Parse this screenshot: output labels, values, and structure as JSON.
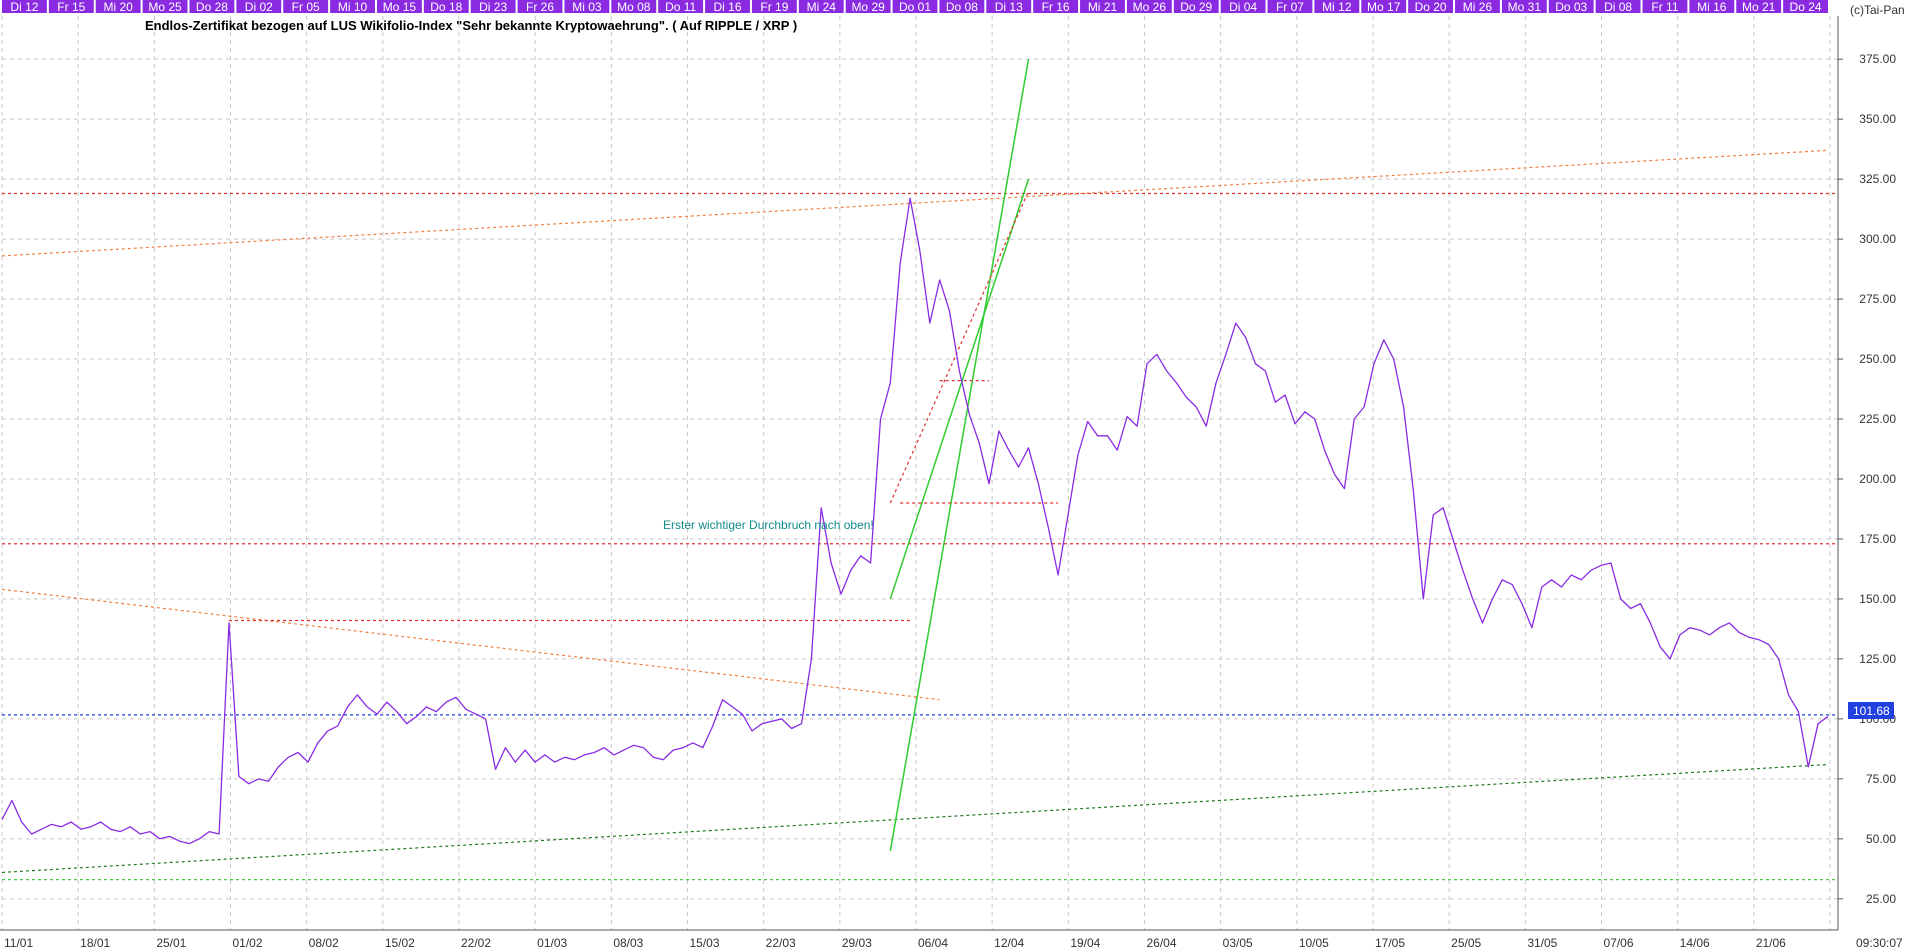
{
  "chart_data": {
    "type": "line",
    "title": "Endlos-Zertifikat bezogen auf LUS Wikifolio-Index \"Sehr bekannte Kryptowaehrung\". ( Auf RIPPLE / XRP )",
    "copyright": "(c)Tai-Pan",
    "top_day_labels": [
      "Di 12",
      "Fr 15",
      "Mi 20",
      "Mo 25",
      "Do 28",
      "Di 02",
      "Fr 05",
      "Mi 10",
      "Mo 15",
      "Do 18",
      "Di 23",
      "Fr 26",
      "Mi 03",
      "Mo 08",
      "Do 11",
      "Di 16",
      "Fr 19",
      "Mi 24",
      "Mo 29",
      "Do 01",
      "Do 08",
      "Di 13",
      "Fr 16",
      "Mi 21",
      "Mo 26",
      "Do 29",
      "Di 04",
      "Fr 07",
      "Mi 12",
      "Mo 17",
      "Do 20",
      "Mi 26",
      "Mo 31",
      "Do 03",
      "Di 08",
      "Fr 11",
      "Mi 16",
      "Mo 21",
      "Do 24"
    ],
    "bottom_date_labels": [
      "11/01",
      "18/01",
      "25/01",
      "01/02",
      "08/02",
      "15/02",
      "22/02",
      "01/03",
      "08/03",
      "15/03",
      "22/03",
      "29/03",
      "06/04",
      "12/04",
      "19/04",
      "26/04",
      "03/05",
      "10/05",
      "17/05",
      "25/05",
      "31/05",
      "07/06",
      "14/06",
      "21/06",
      "09:30:07"
    ],
    "y_ticks": [
      "25.00",
      "50.00",
      "75.00",
      "100.00",
      "125.00",
      "150.00",
      "175.00",
      "200.00",
      "225.00",
      "250.00",
      "275.00",
      "300.00",
      "325.00",
      "350.00",
      "375.00"
    ],
    "ylim": [
      12,
      393
    ],
    "last_value": "101.68",
    "annotation": "Erster wichtiger Durchbruch nach oben!",
    "colors": {
      "price": "#8a2be2",
      "horizontal_red": "#e03030",
      "horizontal_blue": "#2040e0",
      "trend_green": "#2ecc2e",
      "trend_orange": "#f08040",
      "trend_dashed_green": "#207a20",
      "label_bar": "#8a2be2"
    },
    "x_index_range": [
      0,
      166
    ],
    "series": [
      {
        "values": [
          [
            0,
            58
          ],
          [
            1,
            66
          ],
          [
            2,
            57
          ],
          [
            3,
            52
          ],
          [
            4,
            54
          ],
          [
            5,
            56
          ],
          [
            6,
            55
          ],
          [
            7,
            57
          ],
          [
            8,
            54
          ],
          [
            9,
            55
          ],
          [
            10,
            57
          ],
          [
            11,
            54
          ],
          [
            12,
            53
          ],
          [
            13,
            55
          ],
          [
            14,
            52
          ],
          [
            15,
            53
          ],
          [
            16,
            50
          ],
          [
            17,
            51
          ],
          [
            18,
            49
          ],
          [
            19,
            48
          ],
          [
            20,
            50
          ],
          [
            21,
            53
          ],
          [
            22,
            52
          ],
          [
            23,
            140
          ],
          [
            24,
            76
          ],
          [
            25,
            73
          ],
          [
            26,
            75
          ],
          [
            27,
            74
          ],
          [
            28,
            80
          ],
          [
            29,
            84
          ],
          [
            30,
            86
          ],
          [
            31,
            82
          ],
          [
            32,
            90
          ],
          [
            33,
            95
          ],
          [
            34,
            97
          ],
          [
            35,
            105
          ],
          [
            36,
            110
          ],
          [
            37,
            105
          ],
          [
            38,
            102
          ],
          [
            39,
            107
          ],
          [
            40,
            103
          ],
          [
            41,
            98
          ],
          [
            42,
            101
          ],
          [
            43,
            105
          ],
          [
            44,
            103
          ],
          [
            45,
            107
          ],
          [
            46,
            109
          ],
          [
            47,
            104
          ],
          [
            48,
            102
          ],
          [
            49,
            100
          ],
          [
            50,
            79
          ],
          [
            51,
            88
          ],
          [
            52,
            82
          ],
          [
            53,
            87
          ],
          [
            54,
            82
          ],
          [
            55,
            85
          ],
          [
            56,
            82
          ],
          [
            57,
            84
          ],
          [
            58,
            83
          ],
          [
            59,
            85
          ],
          [
            60,
            86
          ],
          [
            61,
            88
          ],
          [
            62,
            85
          ],
          [
            63,
            87
          ],
          [
            64,
            89
          ],
          [
            65,
            88
          ],
          [
            66,
            84
          ],
          [
            67,
            83
          ],
          [
            68,
            87
          ],
          [
            69,
            88
          ],
          [
            70,
            90
          ],
          [
            71,
            88
          ],
          [
            72,
            97
          ],
          [
            73,
            108
          ],
          [
            74,
            105
          ],
          [
            75,
            102
          ],
          [
            76,
            95
          ],
          [
            77,
            98
          ],
          [
            78,
            99
          ],
          [
            79,
            100
          ],
          [
            80,
            96
          ],
          [
            81,
            98
          ],
          [
            82,
            125
          ],
          [
            83,
            188
          ],
          [
            84,
            165
          ],
          [
            85,
            152
          ],
          [
            86,
            162
          ],
          [
            87,
            168
          ],
          [
            88,
            165
          ],
          [
            89,
            225
          ],
          [
            90,
            240
          ],
          [
            91,
            290
          ],
          [
            92,
            317
          ],
          [
            93,
            295
          ],
          [
            94,
            265
          ],
          [
            95,
            283
          ],
          [
            96,
            270
          ],
          [
            97,
            245
          ],
          [
            98,
            227
          ],
          [
            99,
            215
          ],
          [
            100,
            198
          ],
          [
            101,
            220
          ],
          [
            102,
            212
          ],
          [
            103,
            205
          ],
          [
            104,
            213
          ],
          [
            105,
            198
          ],
          [
            106,
            180
          ],
          [
            107,
            160
          ],
          [
            108,
            185
          ],
          [
            109,
            210
          ],
          [
            110,
            224
          ],
          [
            111,
            218
          ],
          [
            112,
            218
          ],
          [
            113,
            212
          ],
          [
            114,
            226
          ],
          [
            115,
            222
          ],
          [
            116,
            248
          ],
          [
            117,
            252
          ],
          [
            118,
            245
          ],
          [
            119,
            240
          ],
          [
            120,
            234
          ],
          [
            121,
            230
          ],
          [
            122,
            222
          ],
          [
            123,
            240
          ],
          [
            124,
            252
          ],
          [
            125,
            265
          ],
          [
            126,
            259
          ],
          [
            127,
            248
          ],
          [
            128,
            245
          ],
          [
            129,
            232
          ],
          [
            130,
            235
          ],
          [
            131,
            223
          ],
          [
            132,
            228
          ],
          [
            133,
            225
          ],
          [
            134,
            212
          ],
          [
            135,
            202
          ],
          [
            136,
            196
          ],
          [
            137,
            225
          ],
          [
            138,
            230
          ],
          [
            139,
            248
          ],
          [
            140,
            258
          ],
          [
            141,
            250
          ],
          [
            142,
            230
          ],
          [
            143,
            195
          ],
          [
            144,
            150
          ],
          [
            145,
            185
          ],
          [
            146,
            188
          ],
          [
            147,
            175
          ],
          [
            148,
            162
          ],
          [
            149,
            150
          ],
          [
            150,
            140
          ],
          [
            151,
            150
          ],
          [
            152,
            158
          ],
          [
            153,
            156
          ],
          [
            154,
            148
          ],
          [
            155,
            138
          ],
          [
            156,
            155
          ],
          [
            157,
            158
          ],
          [
            158,
            155
          ],
          [
            159,
            160
          ],
          [
            160,
            158
          ],
          [
            161,
            162
          ],
          [
            162,
            164
          ],
          [
            163,
            165
          ],
          [
            164,
            150
          ],
          [
            165,
            146
          ],
          [
            166,
            148
          ],
          [
            167,
            140
          ],
          [
            168,
            130
          ],
          [
            169,
            125
          ],
          [
            170,
            135
          ],
          [
            171,
            138
          ],
          [
            172,
            137
          ],
          [
            173,
            135
          ],
          [
            174,
            138
          ],
          [
            175,
            140
          ],
          [
            176,
            136
          ],
          [
            177,
            134
          ],
          [
            178,
            133
          ],
          [
            179,
            131
          ],
          [
            180,
            125
          ],
          [
            181,
            110
          ],
          [
            182,
            103
          ],
          [
            183,
            80
          ],
          [
            184,
            98
          ],
          [
            185,
            101
          ]
        ]
      }
    ],
    "x_max": 185,
    "horizontal_lines": [
      {
        "y": 319,
        "style": "dashed",
        "color": "#e03030"
      },
      {
        "y": 173,
        "style": "dashed",
        "color": "#e03030"
      },
      {
        "y": 101.68,
        "style": "dashed",
        "color": "#2040e0"
      },
      {
        "y": 33,
        "style": "dashed",
        "color": "#40d040"
      }
    ],
    "segments": [
      {
        "x1": 0,
        "y1": 293,
        "x2": 185,
        "y2": 337,
        "style": "dashed",
        "color": "#f08040"
      },
      {
        "x1": 0,
        "y1": 154,
        "x2": 95,
        "y2": 108,
        "style": "dashed",
        "color": "#f08040"
      },
      {
        "x1": 0,
        "y1": 36,
        "x2": 185,
        "y2": 81,
        "style": "dashed",
        "color": "#207a20"
      },
      {
        "x1": 90,
        "y1": 45,
        "x2": 104,
        "y2": 375,
        "style": "solid",
        "color": "#2ecc2e"
      },
      {
        "x1": 90,
        "y1": 150,
        "x2": 104,
        "y2": 325,
        "style": "solid",
        "color": "#2ecc2e"
      },
      {
        "x1": 90,
        "y1": 190,
        "x2": 104,
        "y2": 320,
        "style": "dashed",
        "color": "#e03030"
      },
      {
        "x1": 23,
        "y1": 141,
        "x2": 92,
        "y2": 141,
        "style": "dashed",
        "color": "#e03030"
      },
      {
        "x1": 91,
        "y1": 190,
        "x2": 107,
        "y2": 190,
        "style": "dashed",
        "color": "#e03030"
      },
      {
        "x1": 95,
        "y1": 241,
        "x2": 100,
        "y2": 241,
        "style": "dashed",
        "color": "#e03030"
      }
    ]
  }
}
